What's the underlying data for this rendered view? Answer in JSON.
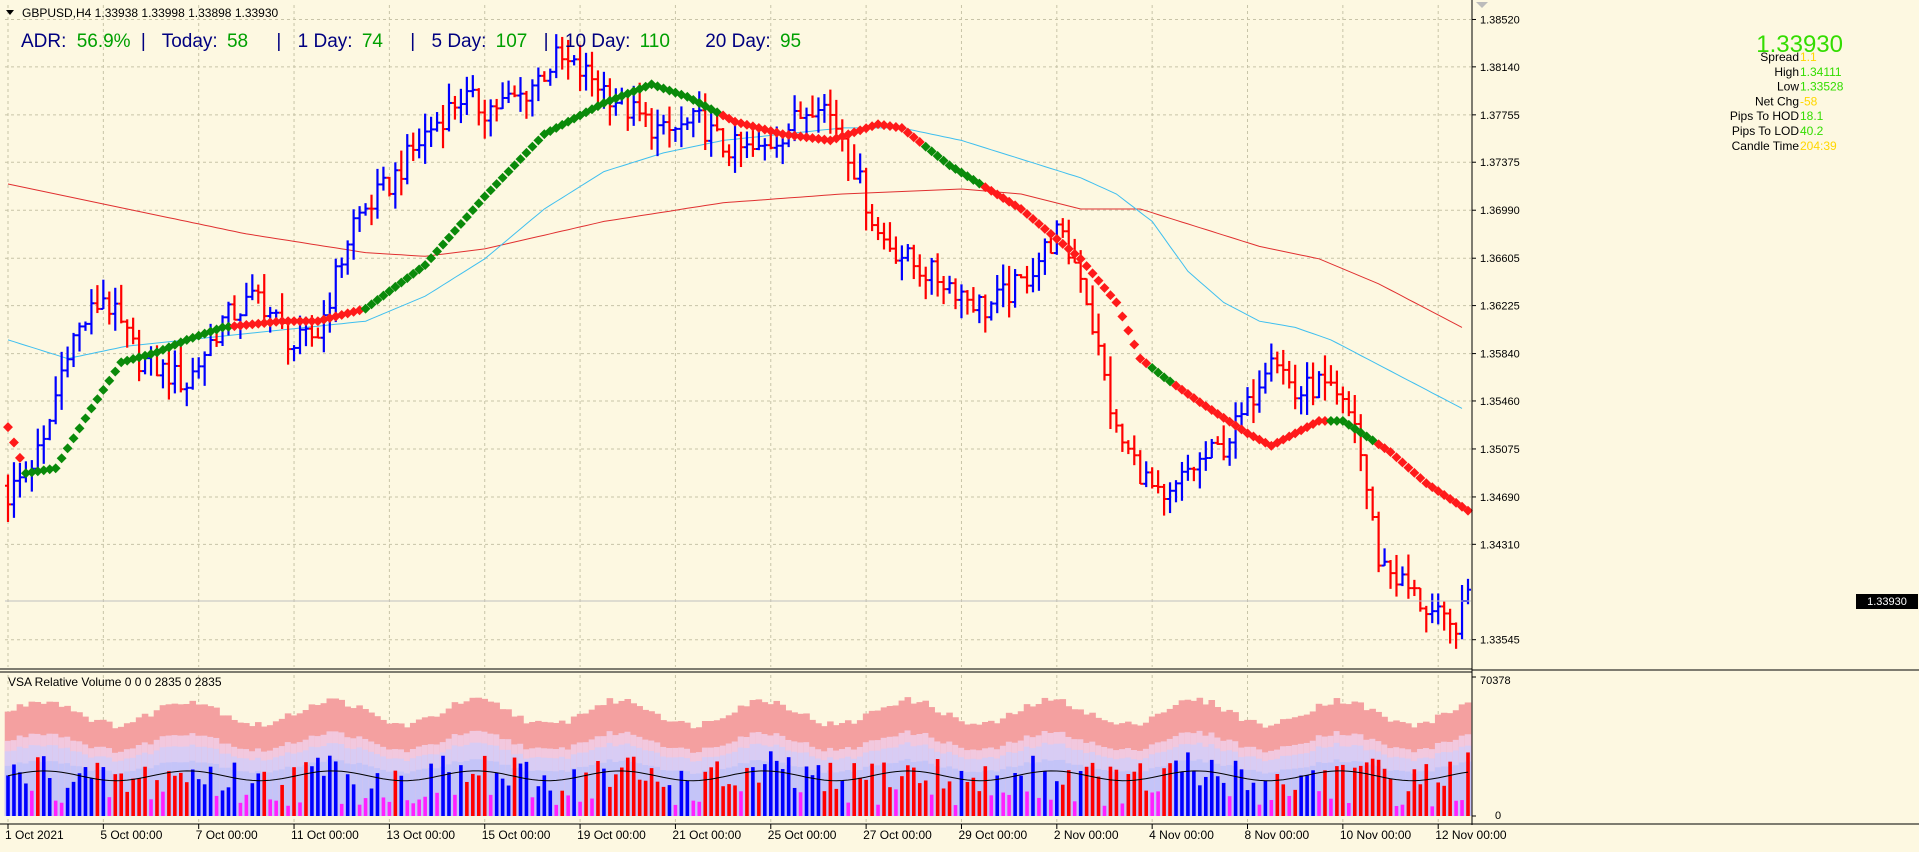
{
  "window": {
    "title": "GBPUSD,H4  1.33938 1.33998 1.33898 1.33930"
  },
  "adr_bar": {
    "items": [
      {
        "label": "ADR:",
        "value": "56.9%",
        "sep": "|"
      },
      {
        "label": "Today:",
        "value": "58",
        "sep": "|"
      },
      {
        "label": "1 Day:",
        "value": "74",
        "sep": "|"
      },
      {
        "label": "5 Day:",
        "value": "107",
        "sep": "|"
      },
      {
        "label": "10 Day:",
        "value": "110",
        "sep": ""
      },
      {
        "label": "20 Day:",
        "value": "95",
        "sep": ""
      }
    ]
  },
  "info_panel": {
    "price": "1.33930",
    "rows": [
      {
        "label": "Spread",
        "value": "1.1",
        "color": "#ffd700"
      },
      {
        "label": "High",
        "value": "1.34111",
        "color": "#33dd00"
      },
      {
        "label": "Low",
        "value": "1.33528",
        "color": "#33dd00"
      },
      {
        "label": "Net Chg",
        "value": "-58",
        "color": "#ffd700"
      },
      {
        "label": "Pips To HOD",
        "value": "18.1",
        "color": "#33dd00"
      },
      {
        "label": "Pips To LOD",
        "value": "40.2",
        "color": "#33dd00"
      },
      {
        "label": "Candle Time",
        "value": "204:39",
        "color": "#ffd700"
      }
    ]
  },
  "price_axis": {
    "ticks": [
      "1.38520",
      "1.38140",
      "1.37755",
      "1.37375",
      "1.36990",
      "1.36605",
      "1.36225",
      "1.35840",
      "1.35460",
      "1.35075",
      "1.34690",
      "1.34310",
      "1.33545"
    ],
    "current_label": "1.33930"
  },
  "volume_panel": {
    "title": "VSA Relative Volume 0 0 0 2835 0 2835",
    "scale_top": "70378",
    "scale_bottom": "0"
  },
  "time_axis": {
    "labels": [
      "1 Oct 2021",
      "5 Oct 00:00",
      "7 Oct 00:00",
      "11 Oct 00:00",
      "13 Oct 00:00",
      "15 Oct 00:00",
      "19 Oct 00:00",
      "21 Oct 00:00",
      "25 Oct 00:00",
      "27 Oct 00:00",
      "29 Oct 00:00",
      "2 Nov 00:00",
      "4 Nov 00:00",
      "8 Nov 00:00",
      "10 Nov 00:00",
      "12 Nov 00:00"
    ]
  },
  "colors": {
    "background": "#fdf8e1",
    "bull_bar": "#0000ff",
    "bear_bar": "#ff0000",
    "trend_up": "#0a8a0a",
    "trend_down": "#ff1a1a",
    "ma_fast": "#3fbfef",
    "ma_slow": "#e03030",
    "adr_value": "#00a000",
    "grid": "#c8c4a8"
  },
  "chart_data": {
    "type": "ohlc",
    "symbol": "GBPUSD",
    "timeframe": "H4",
    "title": "GBPUSD,H4",
    "ylim": [
      1.3335,
      1.3858
    ],
    "x_labels": [
      "1 Oct 2021",
      "5 Oct 00:00",
      "7 Oct 00:00",
      "11 Oct 00:00",
      "13 Oct 00:00",
      "15 Oct 00:00",
      "19 Oct 00:00",
      "21 Oct 00:00",
      "25 Oct 00:00",
      "27 Oct 00:00",
      "29 Oct 00:00",
      "2 Nov 00:00",
      "4 Nov 00:00",
      "8 Nov 00:00",
      "10 Nov 00:00",
      "12 Nov 00:00"
    ],
    "close_keypoints": [
      [
        0,
        1.347
      ],
      [
        6,
        1.351
      ],
      [
        10,
        1.359
      ],
      [
        16,
        1.363
      ],
      [
        22,
        1.358
      ],
      [
        30,
        1.356
      ],
      [
        36,
        1.361
      ],
      [
        42,
        1.363
      ],
      [
        48,
        1.359
      ],
      [
        52,
        1.36
      ],
      [
        58,
        1.369
      ],
      [
        64,
        1.372
      ],
      [
        70,
        1.376
      ],
      [
        76,
        1.379
      ],
      [
        80,
        1.378
      ],
      [
        86,
        1.379
      ],
      [
        92,
        1.382
      ],
      [
        98,
        1.3805
      ],
      [
        104,
        1.378
      ],
      [
        110,
        1.376
      ],
      [
        116,
        1.377
      ],
      [
        120,
        1.375
      ],
      [
        126,
        1.3745
      ],
      [
        132,
        1.377
      ],
      [
        136,
        1.379
      ],
      [
        140,
        1.376
      ],
      [
        146,
        1.368
      ],
      [
        152,
        1.3655
      ],
      [
        158,
        1.364
      ],
      [
        164,
        1.362
      ],
      [
        170,
        1.364
      ],
      [
        176,
        1.368
      ],
      [
        180,
        1.365
      ],
      [
        186,
        1.352
      ],
      [
        190,
        1.349
      ],
      [
        194,
        1.346
      ],
      [
        198,
        1.349
      ],
      [
        204,
        1.351
      ],
      [
        208,
        1.354
      ],
      [
        212,
        1.359
      ],
      [
        216,
        1.355
      ],
      [
        220,
        1.356
      ],
      [
        226,
        1.353
      ],
      [
        230,
        1.342
      ],
      [
        234,
        1.34
      ],
      [
        238,
        1.338
      ],
      [
        242,
        1.3362
      ],
      [
        244,
        1.3375
      ],
      [
        245,
        1.3393
      ]
    ],
    "trend_line_keypoints": [
      [
        0,
        1.3525
      ],
      [
        3,
        1.3488
      ],
      [
        8,
        1.3492
      ],
      [
        14,
        1.354
      ],
      [
        19,
        1.3577
      ],
      [
        25,
        1.3585
      ],
      [
        30,
        1.3595
      ],
      [
        36,
        1.3605
      ],
      [
        46,
        1.361
      ],
      [
        52,
        1.361
      ],
      [
        60,
        1.362
      ],
      [
        70,
        1.3655
      ],
      [
        80,
        1.371
      ],
      [
        90,
        1.376
      ],
      [
        100,
        1.3785
      ],
      [
        108,
        1.38
      ],
      [
        114,
        1.379
      ],
      [
        122,
        1.377
      ],
      [
        130,
        1.376
      ],
      [
        138,
        1.3755
      ],
      [
        146,
        1.3768
      ],
      [
        150,
        1.3765
      ],
      [
        158,
        1.3735
      ],
      [
        170,
        1.37
      ],
      [
        180,
        1.366
      ],
      [
        186,
        1.3625
      ],
      [
        190,
        1.358
      ],
      [
        194,
        1.3565
      ],
      [
        200,
        1.3545
      ],
      [
        208,
        1.352
      ],
      [
        212,
        1.351
      ],
      [
        220,
        1.353
      ],
      [
        224,
        1.353
      ],
      [
        232,
        1.3505
      ],
      [
        238,
        1.348
      ],
      [
        245,
        1.3458
      ]
    ],
    "trend_direction_ranges": [
      {
        "from": 0,
        "to": 3,
        "dir": "down"
      },
      {
        "from": 3,
        "to": 38,
        "dir": "up"
      },
      {
        "from": 38,
        "to": 60,
        "dir": "down"
      },
      {
        "from": 60,
        "to": 120,
        "dir": "up"
      },
      {
        "from": 120,
        "to": 154,
        "dir": "down"
      },
      {
        "from": 154,
        "to": 164,
        "dir": "up"
      },
      {
        "from": 164,
        "to": 192,
        "dir": "down"
      },
      {
        "from": 192,
        "to": 196,
        "dir": "up"
      },
      {
        "from": 196,
        "to": 222,
        "dir": "down"
      },
      {
        "from": 222,
        "to": 230,
        "dir": "up"
      },
      {
        "from": 230,
        "to": 245,
        "dir": "down"
      }
    ],
    "ma_fast_keypoints": [
      [
        0,
        1.3595
      ],
      [
        10,
        1.358
      ],
      [
        20,
        1.359
      ],
      [
        40,
        1.36
      ],
      [
        60,
        1.361
      ],
      [
        70,
        1.363
      ],
      [
        80,
        1.366
      ],
      [
        90,
        1.37
      ],
      [
        100,
        1.373
      ],
      [
        110,
        1.3745
      ],
      [
        120,
        1.3755
      ],
      [
        130,
        1.376
      ],
      [
        140,
        1.3765
      ],
      [
        150,
        1.3765
      ],
      [
        160,
        1.3755
      ],
      [
        170,
        1.374
      ],
      [
        180,
        1.3725
      ],
      [
        186,
        1.3712
      ],
      [
        192,
        1.369
      ],
      [
        198,
        1.365
      ],
      [
        204,
        1.3625
      ],
      [
        210,
        1.361
      ],
      [
        216,
        1.3605
      ],
      [
        222,
        1.3595
      ],
      [
        226,
        1.3585
      ],
      [
        232,
        1.357
      ],
      [
        238,
        1.3555
      ],
      [
        244,
        1.354
      ]
    ],
    "ma_slow_keypoints": [
      [
        0,
        1.372
      ],
      [
        20,
        1.37
      ],
      [
        40,
        1.368
      ],
      [
        60,
        1.3665
      ],
      [
        70,
        1.3662
      ],
      [
        80,
        1.3668
      ],
      [
        100,
        1.369
      ],
      [
        120,
        1.3705
      ],
      [
        140,
        1.3712
      ],
      [
        160,
        1.3716
      ],
      [
        170,
        1.3712
      ],
      [
        180,
        1.37
      ],
      [
        190,
        1.37
      ],
      [
        200,
        1.3685
      ],
      [
        210,
        1.367
      ],
      [
        220,
        1.366
      ],
      [
        230,
        1.364
      ],
      [
        238,
        1.362
      ],
      [
        244,
        1.3605
      ]
    ],
    "bar_count": 246,
    "current_price": 1.3393,
    "volume_scale": [
      0,
      70378
    ]
  }
}
